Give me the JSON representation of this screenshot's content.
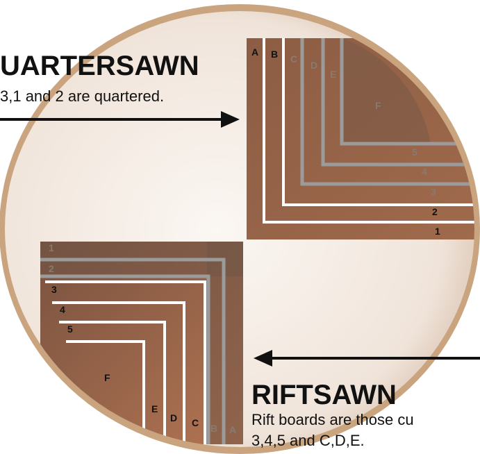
{
  "quartersawn": {
    "title": "UARTERSAWN",
    "caption": "3,1 and 2 are quartered.",
    "labels": [
      "A",
      "B",
      "C",
      "D",
      "E",
      "F",
      "5",
      "4",
      "3",
      "2",
      "1"
    ]
  },
  "riftsawn": {
    "title": "RIFTSAWN",
    "caption_lines": [
      "Rift boards are those cu",
      "3,4,5 and C,D,E."
    ],
    "labels": [
      "1",
      "2",
      "3",
      "4",
      "5",
      "F",
      "E",
      "D",
      "C",
      "B",
      "A"
    ]
  }
}
